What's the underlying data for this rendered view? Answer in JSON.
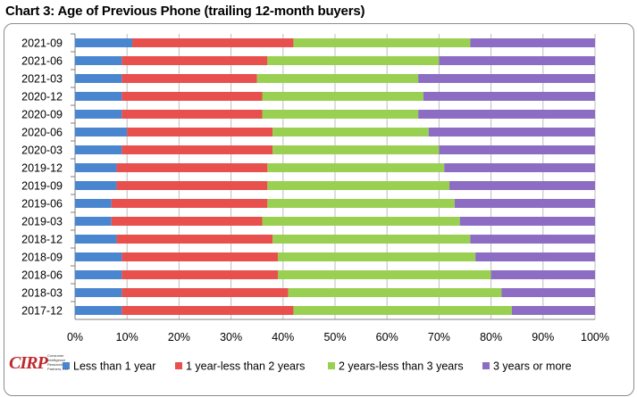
{
  "chart_title": "Chart 3: Age of Previous Phone (trailing 12-month buyers)",
  "logo": {
    "mark": "CIRP",
    "text": "Consumer Intelligence Research Partners, LLC"
  },
  "colors": {
    "s1": "#4a86cf",
    "s2": "#e8504d",
    "s3": "#9ad052",
    "s4": "#8d6cc4"
  },
  "chart_data": {
    "type": "bar",
    "orientation": "horizontal",
    "stacked": "percent",
    "categories": [
      "2021-09",
      "2021-06",
      "2021-03",
      "2020-12",
      "2020-09",
      "2020-06",
      "2020-03",
      "2019-12",
      "2019-09",
      "2019-06",
      "2019-03",
      "2018-12",
      "2018-09",
      "2018-06",
      "2018-03",
      "2017-12"
    ],
    "series": [
      {
        "name": "Less than 1 year",
        "values": [
          11,
          9,
          9,
          9,
          9,
          10,
          9,
          8,
          8,
          7,
          7,
          8,
          9,
          9,
          9,
          9
        ]
      },
      {
        "name": "1 year-less than 2 years",
        "values": [
          31,
          28,
          26,
          27,
          27,
          28,
          29,
          29,
          29,
          30,
          29,
          30,
          30,
          30,
          32,
          33
        ]
      },
      {
        "name": "2 years-less than 3 years",
        "values": [
          34,
          33,
          31,
          31,
          30,
          30,
          32,
          34,
          35,
          36,
          38,
          38,
          38,
          41,
          41,
          42
        ]
      },
      {
        "name": "3 years or more",
        "values": [
          24,
          30,
          34,
          33,
          34,
          32,
          30,
          29,
          28,
          27,
          26,
          24,
          23,
          20,
          18,
          16
        ]
      }
    ],
    "x_ticks": [
      "0%",
      "10%",
      "20%",
      "30%",
      "40%",
      "50%",
      "60%",
      "70%",
      "80%",
      "90%",
      "100%"
    ],
    "xlim": [
      0,
      100
    ],
    "grid": true,
    "legend_position": "bottom"
  }
}
